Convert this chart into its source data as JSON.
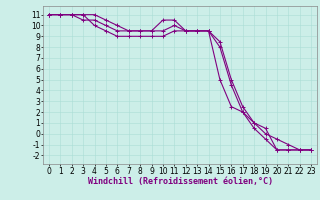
{
  "background_color": "#cceee8",
  "grid_color": "#aaddd5",
  "line_color": "#800080",
  "marker": "+",
  "markersize": 3,
  "linewidth": 0.8,
  "xlabel": "Windchill (Refroidissement éolien,°C)",
  "xlabel_fontsize": 6,
  "tick_fontsize": 5.5,
  "xlim": [
    -0.5,
    23.5
  ],
  "ylim": [
    -2.8,
    11.8
  ],
  "xticks": [
    0,
    1,
    2,
    3,
    4,
    5,
    6,
    7,
    8,
    9,
    10,
    11,
    12,
    13,
    14,
    15,
    16,
    17,
    18,
    19,
    20,
    21,
    22,
    23
  ],
  "yticks": [
    -2,
    -1,
    0,
    1,
    2,
    3,
    4,
    5,
    6,
    7,
    8,
    9,
    10,
    11
  ],
  "series": [
    [
      11,
      11,
      11,
      11,
      11,
      10.5,
      10,
      9.5,
      9.5,
      9.5,
      10.5,
      10.5,
      9.5,
      9.5,
      9.5,
      8.5,
      5.0,
      2.5,
      1.0,
      0.5,
      -1.5,
      -1.5,
      -1.5,
      -1.5
    ],
    [
      11,
      11,
      11,
      10.5,
      10.5,
      10,
      9.5,
      9.5,
      9.5,
      9.5,
      9.5,
      10,
      9.5,
      9.5,
      9.5,
      5.0,
      2.5,
      2.0,
      1.0,
      0.0,
      -0.5,
      -1.0,
      -1.5,
      -1.5
    ],
    [
      11,
      11,
      11,
      11,
      10,
      9.5,
      9.0,
      9.0,
      9.0,
      9.0,
      9.0,
      9.5,
      9.5,
      9.5,
      9.5,
      8.0,
      4.5,
      2.0,
      0.5,
      -0.5,
      -1.5,
      -1.5,
      -1.5,
      -1.5
    ]
  ]
}
